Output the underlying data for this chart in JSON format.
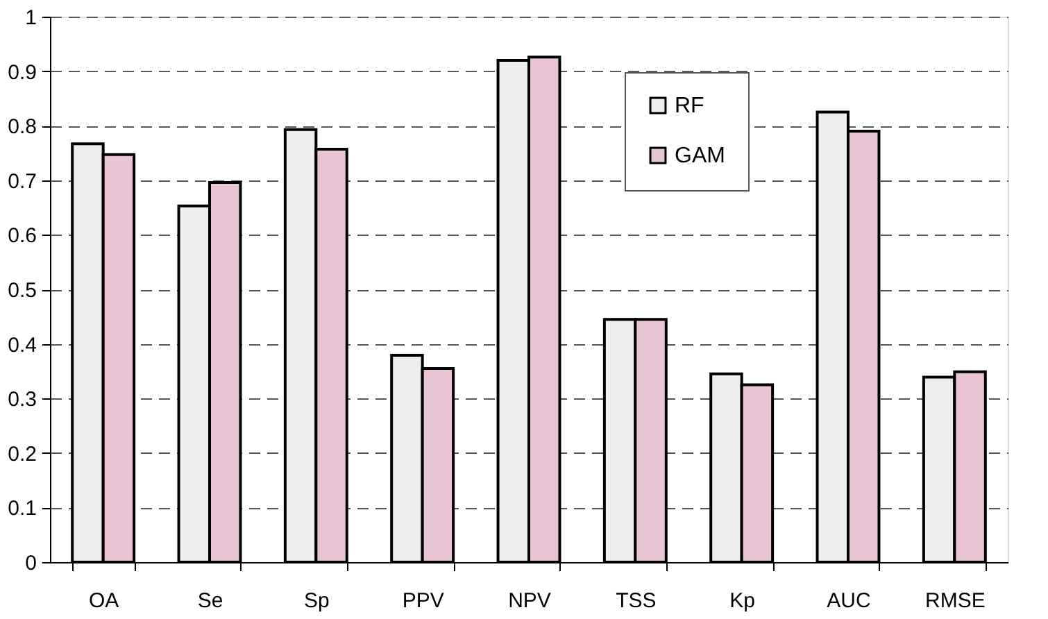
{
  "chart_data": {
    "type": "bar",
    "categories": [
      "OA",
      "Se",
      "Sp",
      "PPV",
      "NPV",
      "TSS",
      "Kp",
      "AUC",
      "RMSE"
    ],
    "series": [
      {
        "name": "RF",
        "color": "#eeeeee",
        "values": [
          0.767,
          0.653,
          0.793,
          0.379,
          0.92,
          0.445,
          0.345,
          0.825,
          0.339
        ]
      },
      {
        "name": "GAM",
        "color": "#e8c4d4",
        "values": [
          0.747,
          0.696,
          0.757,
          0.355,
          0.926,
          0.445,
          0.325,
          0.79,
          0.349
        ]
      }
    ],
    "ylim": [
      0,
      1
    ],
    "yticks": [
      0,
      0.1,
      0.2,
      0.3,
      0.4,
      0.5,
      0.6,
      0.7,
      0.8,
      0.9,
      1
    ],
    "grid": "y",
    "legend": "top right"
  }
}
